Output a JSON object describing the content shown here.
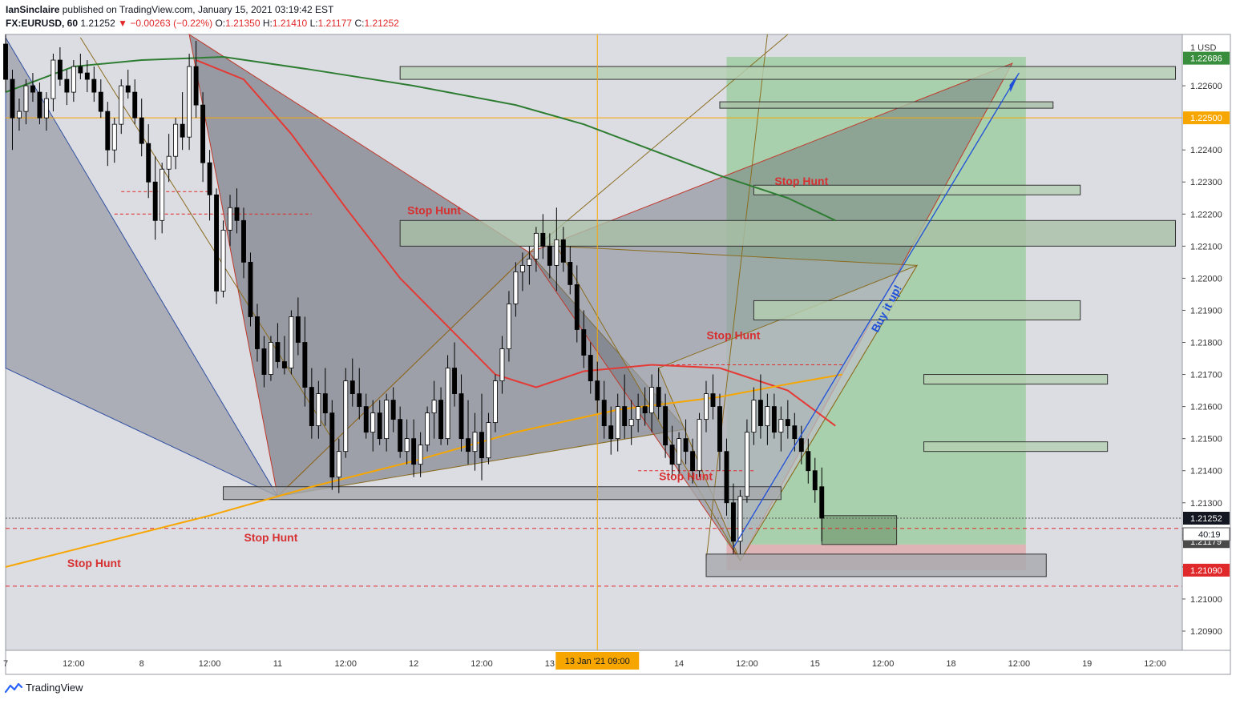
{
  "header": {
    "publisher": "IanSinclaire",
    "published_text": "published on TradingView.com, January 15, 2021 03:19:42 EST",
    "symbol": "FX:EURUSD, 60",
    "last": "1.21252",
    "arrow": "▼",
    "change": "−0.00263 (−0.22%)",
    "o_label": "O:",
    "o_value": "1.21350",
    "h_label": "H:",
    "h_value": "1.21410",
    "l_label": "L:",
    "l_value": "1.21177",
    "c_label": "C:",
    "c_value": "1.21252"
  },
  "footer": {
    "brand": "TradingView",
    "icon": "tradingview-logo-icon"
  },
  "chart_data": {
    "type": "candlestick",
    "currency_label": "1 USD",
    "ylim": [
      1.2084,
      1.2276
    ],
    "y_ticks": [
      "1.20900",
      "1.21000",
      "1.21100",
      "1.21200",
      "1.21300",
      "1.21400",
      "1.21500",
      "1.21600",
      "1.21700",
      "1.21800",
      "1.21900",
      "1.22000",
      "1.22100",
      "1.22200",
      "1.22300",
      "1.22400",
      "1.22600"
    ],
    "x_ticks": [
      {
        "t": 0,
        "label": "7"
      },
      {
        "t": 10,
        "label": "12:00"
      },
      {
        "t": 20,
        "label": "8"
      },
      {
        "t": 30,
        "label": "12:00"
      },
      {
        "t": 40,
        "label": "11"
      },
      {
        "t": 50,
        "label": "12:00"
      },
      {
        "t": 60,
        "label": "12"
      },
      {
        "t": 70,
        "label": "12:00"
      },
      {
        "t": 80,
        "label": "13"
      },
      {
        "t": 99,
        "label": "14"
      },
      {
        "t": 109,
        "label": "12:00"
      },
      {
        "t": 119,
        "label": "15"
      },
      {
        "t": 129,
        "label": "12:00"
      },
      {
        "t": 139,
        "label": "18"
      },
      {
        "t": 149,
        "label": "12:00"
      },
      {
        "t": 159,
        "label": "19"
      },
      {
        "t": 169,
        "label": "12:00"
      }
    ],
    "crosshair_label": "13 Jan '21   09:00",
    "price_labels": [
      {
        "value": 1.22686,
        "text": "1.22686",
        "color": "#388e3c"
      },
      {
        "value": 1.225,
        "text": "1.22500",
        "color": "#f7a600"
      },
      {
        "value": 1.21252,
        "text": "1.21252",
        "color": "#131722"
      },
      {
        "value": 1.21179,
        "text": "1.21179",
        "color": "#4a4a4a"
      },
      {
        "value": 1.2109,
        "text": "1.21090",
        "color": "#e0292b"
      }
    ],
    "countdown": "40:19",
    "annotations": [
      {
        "text": "Stop Hunt",
        "t": 63,
        "v": 1.222
      },
      {
        "text": "Stop Hunt",
        "t": 117,
        "v": 1.2229
      },
      {
        "text": "Stop Hunt",
        "t": 107,
        "v": 1.2181
      },
      {
        "text": "Stop Hunt",
        "t": 100,
        "v": 1.2137
      },
      {
        "text": "Stop Hunt",
        "t": 39,
        "v": 1.2118
      },
      {
        "text": "Stop Hunt",
        "t": 13,
        "v": 1.211
      },
      {
        "text": "Buy it up!",
        "t": 130,
        "v": 1.219,
        "rotate": -62
      }
    ],
    "horizontal_lines": [
      {
        "v": 1.225,
        "color": "#f7a600",
        "style": "solid"
      },
      {
        "v": 1.21252,
        "color": "#555555",
        "style": "dotted"
      },
      {
        "v": 1.2122,
        "color": "#e0292b",
        "style": "dashed"
      },
      {
        "v": 1.2104,
        "color": "#e0292b",
        "style": "dashed"
      }
    ],
    "zones": [
      {
        "t0": 58,
        "t1": 172,
        "v0": 1.2262,
        "v1": 1.2266,
        "fill": "#b5cfb2",
        "stroke": "#333"
      },
      {
        "t0": 105,
        "t1": 154,
        "v0": 1.2253,
        "v1": 1.2255,
        "fill": "#a9bfa6",
        "stroke": "#333"
      },
      {
        "t0": 110,
        "t1": 158,
        "v0": 1.2226,
        "v1": 1.2229,
        "fill": "#b5cfb2",
        "stroke": "#333"
      },
      {
        "t0": 58,
        "t1": 172,
        "v0": 1.221,
        "v1": 1.2218,
        "fill": "#a9bfa6",
        "stroke": "#333"
      },
      {
        "t0": 110,
        "t1": 158,
        "v0": 1.2187,
        "v1": 1.2193,
        "fill": "#b5cfb2",
        "stroke": "#333"
      },
      {
        "t0": 135,
        "t1": 162,
        "v0": 1.2167,
        "v1": 1.217,
        "fill": "#b5cfb2",
        "stroke": "#333"
      },
      {
        "t0": 135,
        "t1": 162,
        "v0": 1.2146,
        "v1": 1.2149,
        "fill": "#b5cfb2",
        "stroke": "#333"
      },
      {
        "t0": 32,
        "t1": 114,
        "v0": 1.2131,
        "v1": 1.2135,
        "fill": "#a6a9ad",
        "stroke": "#333"
      },
      {
        "t0": 103,
        "t1": 153,
        "v0": 1.2107,
        "v1": 1.2114,
        "fill": "#a6a9ad",
        "stroke": "#333"
      },
      {
        "t0": 120,
        "t1": 131,
        "v0": 1.2117,
        "v1": 1.2126,
        "fill": "#7aa07a",
        "stroke": "#333"
      }
    ],
    "position": {
      "t0": 106,
      "t1": 150,
      "entry": 1.2117,
      "target": 1.2269,
      "stop": 1.2109
    },
    "series": [
      {
        "name": "",
        "color": "#2e7d32",
        "points": [
          [
            0,
            1.2258
          ],
          [
            10,
            1.2266
          ],
          [
            20,
            1.2268
          ],
          [
            32,
            1.2269
          ],
          [
            45,
            1.2265
          ],
          [
            60,
            1.226
          ],
          [
            75,
            1.2254
          ],
          [
            85,
            1.2248
          ],
          [
            95,
            1.224
          ],
          [
            105,
            1.2232
          ],
          [
            115,
            1.2225
          ],
          [
            122,
            1.2218
          ]
        ]
      },
      {
        "name": "",
        "color": "#e53935",
        "points": [
          [
            28,
            1.2268
          ],
          [
            35,
            1.2262
          ],
          [
            42,
            1.2245
          ],
          [
            50,
            1.2222
          ],
          [
            58,
            1.22
          ],
          [
            65,
            1.2185
          ],
          [
            72,
            1.217
          ],
          [
            78,
            1.2166
          ],
          [
            85,
            1.2171
          ],
          [
            95,
            1.2173
          ],
          [
            105,
            1.2172
          ],
          [
            115,
            1.2165
          ],
          [
            122,
            1.2154
          ]
        ]
      },
      {
        "name": "",
        "color": "#f7a600",
        "points": [
          [
            0,
            1.211
          ],
          [
            15,
            1.2118
          ],
          [
            30,
            1.2126
          ],
          [
            45,
            1.2135
          ],
          [
            60,
            1.2143
          ],
          [
            75,
            1.2152
          ],
          [
            90,
            1.2159
          ],
          [
            105,
            1.2163
          ],
          [
            115,
            1.2167
          ],
          [
            123,
            1.217
          ]
        ]
      }
    ],
    "candles": [
      [
        1.2273,
        1.2276,
        1.2258,
        1.2262
      ],
      [
        1.2262,
        1.2265,
        1.224,
        1.225
      ],
      [
        1.225,
        1.2256,
        1.2246,
        1.2252
      ],
      [
        1.2252,
        1.2262,
        1.2248,
        1.226
      ],
      [
        1.226,
        1.2264,
        1.2255,
        1.2258
      ],
      [
        1.2258,
        1.2261,
        1.2248,
        1.225
      ],
      [
        1.225,
        1.2258,
        1.2246,
        1.2256
      ],
      [
        1.2256,
        1.227,
        1.2252,
        1.2268
      ],
      [
        1.2268,
        1.2272,
        1.226,
        1.2262
      ],
      [
        1.2262,
        1.2265,
        1.2254,
        1.2258
      ],
      [
        1.2258,
        1.2268,
        1.2255,
        1.2266
      ],
      [
        1.2266,
        1.227,
        1.2262,
        1.2264
      ],
      [
        1.2264,
        1.2268,
        1.2258,
        1.2262
      ],
      [
        1.2262,
        1.2266,
        1.2255,
        1.2258
      ],
      [
        1.2258,
        1.2262,
        1.225,
        1.2252
      ],
      [
        1.2252,
        1.2255,
        1.2235,
        1.224
      ],
      [
        1.224,
        1.225,
        1.2236,
        1.2248
      ],
      [
        1.2248,
        1.2262,
        1.2245,
        1.226
      ],
      [
        1.226,
        1.2265,
        1.2256,
        1.2258
      ],
      [
        1.2258,
        1.2262,
        1.2248,
        1.225
      ],
      [
        1.225,
        1.2256,
        1.2238,
        1.2242
      ],
      [
        1.2242,
        1.2248,
        1.2225,
        1.223
      ],
      [
        1.223,
        1.2238,
        1.2212,
        1.2218
      ],
      [
        1.2218,
        1.2236,
        1.2214,
        1.2234
      ],
      [
        1.2234,
        1.2245,
        1.223,
        1.2238
      ],
      [
        1.2238,
        1.225,
        1.2234,
        1.2248
      ],
      [
        1.2248,
        1.2258,
        1.224,
        1.2244
      ],
      [
        1.2244,
        1.227,
        1.224,
        1.2266
      ],
      [
        1.2266,
        1.2274,
        1.225,
        1.2254
      ],
      [
        1.2254,
        1.2258,
        1.223,
        1.2236
      ],
      [
        1.2236,
        1.224,
        1.2218,
        1.2226
      ],
      [
        1.2226,
        1.2228,
        1.2192,
        1.2196
      ],
      [
        1.2196,
        1.2218,
        1.2194,
        1.2215
      ],
      [
        1.2215,
        1.2226,
        1.221,
        1.2222
      ],
      [
        1.2222,
        1.2228,
        1.2214,
        1.2218
      ],
      [
        1.2218,
        1.2222,
        1.22,
        1.2205
      ],
      [
        1.2205,
        1.2208,
        1.2185,
        1.2188
      ],
      [
        1.2188,
        1.2192,
        1.2174,
        1.2178
      ],
      [
        1.2178,
        1.2182,
        1.2166,
        1.217
      ],
      [
        1.217,
        1.2182,
        1.2168,
        1.218
      ],
      [
        1.218,
        1.2186,
        1.2172,
        1.2174
      ],
      [
        1.2174,
        1.2182,
        1.217,
        1.2172
      ],
      [
        1.2172,
        1.219,
        1.217,
        1.2188
      ],
      [
        1.2188,
        1.2194,
        1.2176,
        1.218
      ],
      [
        1.218,
        1.2188,
        1.216,
        1.2166
      ],
      [
        1.2166,
        1.2172,
        1.215,
        1.2154
      ],
      [
        1.2154,
        1.2168,
        1.215,
        1.2164
      ],
      [
        1.2164,
        1.2172,
        1.2154,
        1.2158
      ],
      [
        1.2158,
        1.2162,
        1.2134,
        1.2138
      ],
      [
        1.2138,
        1.215,
        1.2133,
        1.2146
      ],
      [
        1.2146,
        1.2172,
        1.2144,
        1.2168
      ],
      [
        1.2168,
        1.2175,
        1.216,
        1.2164
      ],
      [
        1.2164,
        1.2172,
        1.2156,
        1.216
      ],
      [
        1.216,
        1.2164,
        1.215,
        1.2152
      ],
      [
        1.2152,
        1.2162,
        1.2146,
        1.2158
      ],
      [
        1.2158,
        1.2162,
        1.2148,
        1.215
      ],
      [
        1.215,
        1.2164,
        1.2146,
        1.2162
      ],
      [
        1.2162,
        1.2166,
        1.2152,
        1.2156
      ],
      [
        1.2156,
        1.216,
        1.2144,
        1.2146
      ],
      [
        1.2146,
        1.2156,
        1.2142,
        1.215
      ],
      [
        1.215,
        1.2156,
        1.2138,
        1.2142
      ],
      [
        1.2142,
        1.2152,
        1.2138,
        1.2148
      ],
      [
        1.2148,
        1.216,
        1.2146,
        1.2158
      ],
      [
        1.2158,
        1.2168,
        1.215,
        1.2162
      ],
      [
        1.2162,
        1.2166,
        1.2148,
        1.215
      ],
      [
        1.215,
        1.2176,
        1.2148,
        1.2172
      ],
      [
        1.2172,
        1.218,
        1.216,
        1.2164
      ],
      [
        1.2164,
        1.217,
        1.2146,
        1.215
      ],
      [
        1.215,
        1.2162,
        1.2142,
        1.2146
      ],
      [
        1.2146,
        1.2158,
        1.214,
        1.2152
      ],
      [
        1.2152,
        1.2164,
        1.2137,
        1.2144
      ],
      [
        1.2144,
        1.2158,
        1.2142,
        1.2155
      ],
      [
        1.2155,
        1.217,
        1.2152,
        1.2168
      ],
      [
        1.2168,
        1.2182,
        1.2164,
        1.2178
      ],
      [
        1.2178,
        1.2196,
        1.2174,
        1.2192
      ],
      [
        1.2192,
        1.2205,
        1.2188,
        1.2202
      ],
      [
        1.2202,
        1.2208,
        1.2196,
        1.2204
      ],
      [
        1.2204,
        1.221,
        1.2198,
        1.2206
      ],
      [
        1.2206,
        1.2216,
        1.2202,
        1.2214
      ],
      [
        1.2214,
        1.222,
        1.2206,
        1.221
      ],
      [
        1.221,
        1.2214,
        1.22,
        1.2204
      ],
      [
        1.2204,
        1.2222,
        1.2196,
        1.2212
      ],
      [
        1.2212,
        1.2216,
        1.2202,
        1.2205
      ],
      [
        1.2205,
        1.221,
        1.2195,
        1.2198
      ],
      [
        1.2198,
        1.2204,
        1.218,
        1.2184
      ],
      [
        1.2184,
        1.219,
        1.2172,
        1.2176
      ],
      [
        1.2176,
        1.218,
        1.2164,
        1.2168
      ],
      [
        1.2168,
        1.2174,
        1.2158,
        1.2162
      ],
      [
        1.2162,
        1.2168,
        1.215,
        1.2154
      ],
      [
        1.2154,
        1.216,
        1.2145,
        1.215
      ],
      [
        1.215,
        1.2164,
        1.2146,
        1.216
      ],
      [
        1.216,
        1.217,
        1.215,
        1.2154
      ],
      [
        1.2154,
        1.2162,
        1.2148,
        1.2156
      ],
      [
        1.2156,
        1.2164,
        1.2152,
        1.216
      ],
      [
        1.216,
        1.2166,
        1.2154,
        1.2158
      ],
      [
        1.2158,
        1.217,
        1.2152,
        1.2166
      ],
      [
        1.2166,
        1.2172,
        1.2156,
        1.216
      ],
      [
        1.216,
        1.2164,
        1.2144,
        1.2148
      ],
      [
        1.2148,
        1.2154,
        1.2138,
        1.2142
      ],
      [
        1.2142,
        1.2152,
        1.2138,
        1.215
      ],
      [
        1.215,
        1.2156,
        1.2142,
        1.2146
      ],
      [
        1.2146,
        1.215,
        1.2136,
        1.214
      ],
      [
        1.214,
        1.2158,
        1.2138,
        1.2156
      ],
      [
        1.2156,
        1.2168,
        1.2152,
        1.2164
      ],
      [
        1.2164,
        1.217,
        1.2156,
        1.216
      ],
      [
        1.216,
        1.2164,
        1.214,
        1.2146
      ],
      [
        1.2146,
        1.215,
        1.2126,
        1.213
      ],
      [
        1.213,
        1.2136,
        1.2114,
        1.2118
      ],
      [
        1.2118,
        1.2134,
        1.2114,
        1.2132
      ],
      [
        1.2132,
        1.2156,
        1.213,
        1.2152
      ],
      [
        1.2152,
        1.2166,
        1.2148,
        1.2162
      ],
      [
        1.2162,
        1.217,
        1.215,
        1.2154
      ],
      [
        1.2154,
        1.2164,
        1.2148,
        1.216
      ],
      [
        1.216,
        1.2164,
        1.215,
        1.2152
      ],
      [
        1.2152,
        1.216,
        1.2146,
        1.2156
      ],
      [
        1.2156,
        1.2162,
        1.215,
        1.2154
      ],
      [
        1.2154,
        1.2158,
        1.2146,
        1.215
      ],
      [
        1.215,
        1.2154,
        1.2142,
        1.2146
      ],
      [
        1.2146,
        1.215,
        1.2136,
        1.214
      ],
      [
        1.214,
        1.2144,
        1.213,
        1.2134
      ],
      [
        1.2135,
        1.2141,
        1.2118,
        1.21252
      ]
    ]
  }
}
